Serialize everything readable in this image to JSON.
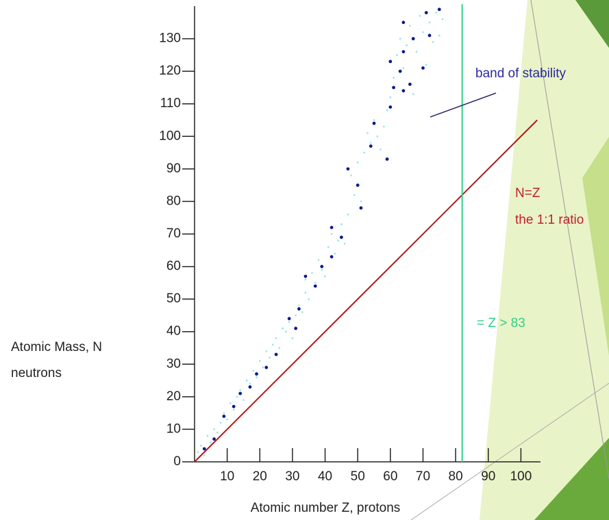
{
  "chart_data": {
    "type": "scatter",
    "y_label": [
      "Atomic Mass, N",
      "neutrons"
    ],
    "x_label": "Atomic number Z, protons",
    "xlim": [
      0,
      106
    ],
    "ylim": [
      0,
      140
    ],
    "xticks": [
      10,
      20,
      30,
      40,
      50,
      60,
      70,
      80,
      90,
      100
    ],
    "yticks": [
      0,
      10,
      20,
      30,
      40,
      50,
      60,
      70,
      80,
      90,
      100,
      110,
      120,
      130
    ],
    "series": [
      {
        "color": "#86e6ef",
        "x": [
          1,
          2,
          3,
          4,
          5,
          6,
          7,
          8,
          9,
          10,
          11,
          12,
          13,
          14,
          15,
          16,
          17,
          18,
          19,
          20,
          21,
          22,
          23,
          24,
          25,
          26,
          27,
          28,
          29,
          30,
          31,
          32,
          33,
          34,
          34,
          35,
          36,
          37,
          38,
          39,
          40,
          41,
          42,
          43,
          44,
          45,
          46,
          47,
          48,
          49,
          50,
          51,
          52,
          53,
          54,
          55,
          56,
          57,
          58,
          59,
          60,
          61,
          62,
          63,
          64,
          65,
          66,
          67,
          68,
          69,
          70,
          71,
          72,
          73,
          74,
          75,
          76
        ],
        "y": [
          3,
          5,
          2,
          8,
          6,
          10,
          9,
          12,
          15,
          13,
          18,
          16,
          20,
          22,
          19,
          25,
          24,
          28,
          26,
          31,
          29,
          34,
          32,
          36,
          38,
          35,
          41,
          40,
          43,
          38,
          45,
          48,
          46,
          52,
          56,
          50,
          58,
          55,
          62,
          59,
          57,
          66,
          70,
          64,
          68,
          73,
          67,
          76,
          88,
          82,
          92,
          80,
          95,
          101,
          98,
          105,
          100,
          96,
          103,
          108,
          112,
          118,
          125,
          130,
          121,
          128,
          134,
          113,
          126,
          137,
          132,
          122,
          135,
          129,
          138,
          131,
          136
        ]
      },
      {
        "color": "#0a1a8c",
        "x": [
          3,
          6,
          9,
          12,
          14,
          17,
          19,
          22,
          25,
          29,
          31,
          32,
          34,
          37,
          39,
          42,
          42,
          45,
          47,
          50,
          51,
          54,
          55,
          59,
          60,
          61,
          64,
          63,
          64,
          66,
          67,
          70,
          71,
          72,
          75,
          60,
          64
        ],
        "y": [
          4,
          7,
          14,
          17,
          21,
          23,
          27,
          29,
          33,
          44,
          41,
          47,
          57,
          54,
          60,
          63,
          72,
          69,
          90,
          85,
          78,
          97,
          104,
          93,
          109,
          115,
          114,
          120,
          135,
          116,
          130,
          121,
          138,
          131,
          139,
          123,
          126
        ]
      }
    ],
    "lines": [
      {
        "color": "#b01818",
        "x": [
          0,
          105
        ],
        "y": [
          0,
          105
        ]
      }
    ],
    "vline": {
      "color": "#2fd08a",
      "x": 82
    },
    "annotations": [
      {
        "text": "band of stability",
        "color": "#2a2a9a"
      },
      {
        "text": "N=Z",
        "color": "#c0202a"
      },
      {
        "text": "the 1:1 ratio",
        "color": "#c0202a"
      },
      {
        "text": "= Z > 83",
        "color": "#2fd08a"
      }
    ]
  }
}
